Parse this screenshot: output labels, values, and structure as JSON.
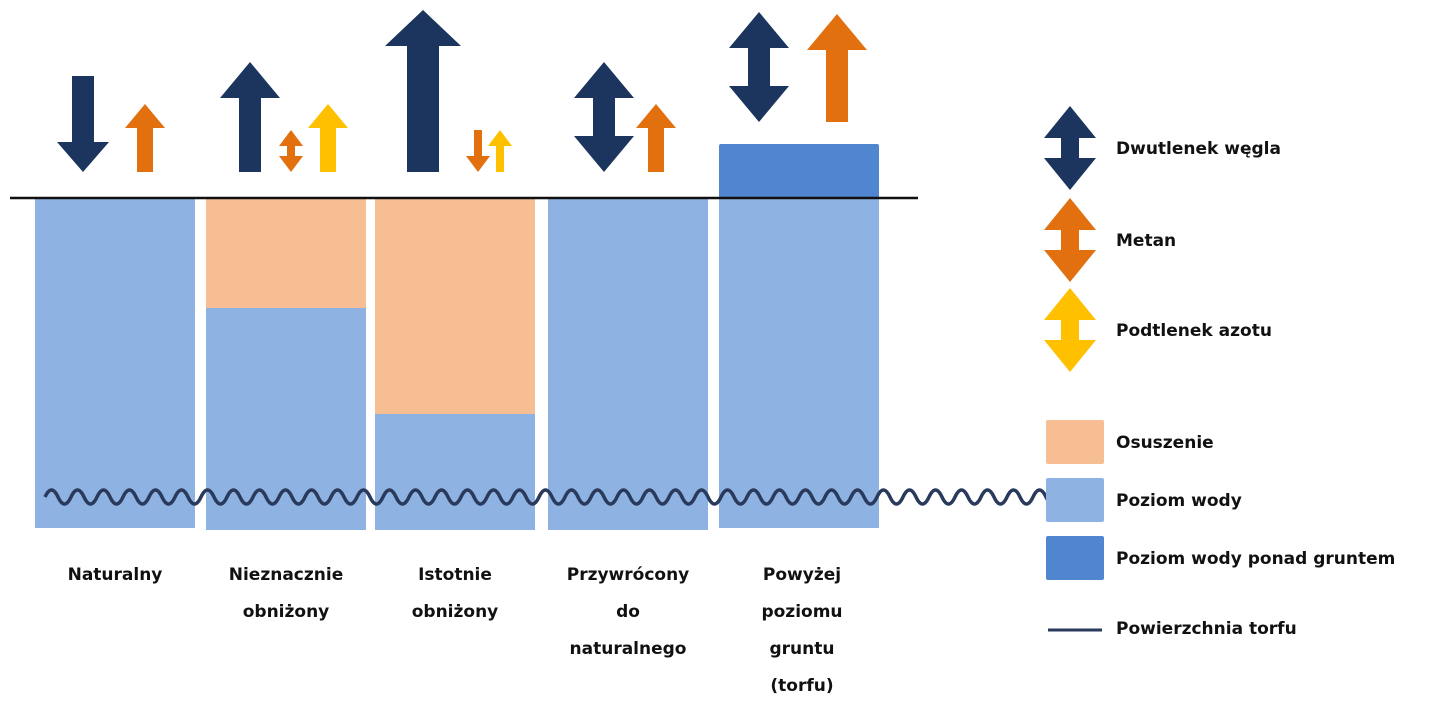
{
  "colors": {
    "co2": "#1b355f",
    "ch4": "#e2700f",
    "n2o": "#ffc000",
    "drained": "#f7be93",
    "water": "#8eb2e2",
    "water_above": "#4f86cf",
    "peat_surface": "#2a3a5c",
    "ground_line": "#111111"
  },
  "columns": [
    {
      "id": "natural",
      "label_lines": [
        "Naturalny"
      ],
      "drained_fraction": 0.0,
      "water_above_ground": false,
      "fluxes": [
        {
          "gas": "co2",
          "direction": "down",
          "magnitude": "medium"
        },
        {
          "gas": "ch4",
          "direction": "up",
          "magnitude": "small"
        }
      ]
    },
    {
      "id": "slightly-lowered",
      "label_lines": [
        "Nieznacznie",
        "obniżony"
      ],
      "drained_fraction": 0.33,
      "water_above_ground": false,
      "fluxes": [
        {
          "gas": "co2",
          "direction": "up",
          "magnitude": "large"
        },
        {
          "gas": "ch4",
          "direction": "both",
          "magnitude": "tiny"
        },
        {
          "gas": "n2o",
          "direction": "up",
          "magnitude": "small"
        }
      ]
    },
    {
      "id": "significantly-lowered",
      "label_lines": [
        "Istotnie",
        "obniżony"
      ],
      "drained_fraction": 0.65,
      "water_above_ground": false,
      "fluxes": [
        {
          "gas": "co2",
          "direction": "up",
          "magnitude": "very-large"
        },
        {
          "gas": "ch4",
          "direction": "down",
          "magnitude": "tiny"
        },
        {
          "gas": "n2o",
          "direction": "up",
          "magnitude": "tiny"
        }
      ]
    },
    {
      "id": "restored",
      "label_lines": [
        "Przywrócony",
        "do",
        "naturalnego"
      ],
      "drained_fraction": 0.0,
      "water_above_ground": false,
      "fluxes": [
        {
          "gas": "co2",
          "direction": "both",
          "magnitude": "large"
        },
        {
          "gas": "ch4",
          "direction": "up",
          "magnitude": "small"
        }
      ]
    },
    {
      "id": "above-ground",
      "label_lines": [
        "Powyżej",
        "poziomu",
        "gruntu",
        "(torfu)"
      ],
      "drained_fraction": 0.0,
      "water_above_ground": true,
      "fluxes": [
        {
          "gas": "co2",
          "direction": "both",
          "magnitude": "large"
        },
        {
          "gas": "ch4",
          "direction": "up",
          "magnitude": "large"
        }
      ]
    }
  ],
  "legend": {
    "gases": [
      {
        "key": "co2",
        "label": "Dwutlenek węgla",
        "icon": "double-arrow"
      },
      {
        "key": "ch4",
        "label": "Metan",
        "icon": "double-arrow"
      },
      {
        "key": "n2o",
        "label": "Podtlenek azotu",
        "icon": "double-arrow"
      }
    ],
    "areas": [
      {
        "key": "drained",
        "label": "Osuszenie",
        "icon": "swatch"
      },
      {
        "key": "water",
        "label": "Poziom wody",
        "icon": "swatch"
      },
      {
        "key": "water_above",
        "label": "Poziom wody ponad gruntem",
        "icon": "swatch"
      },
      {
        "key": "peat_surface",
        "label": "Powierzchnia torfu",
        "icon": "line"
      }
    ]
  }
}
